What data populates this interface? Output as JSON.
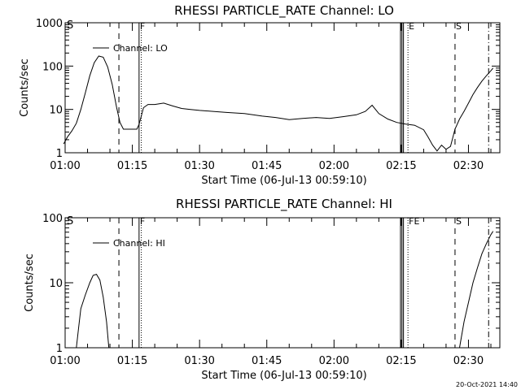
{
  "footer": {
    "timestamp": "20-Oct-2021 14:40"
  },
  "chart_data": [
    {
      "type": "line",
      "title": "RHESSI PARTICLE_RATE Channel: LO",
      "xlabel": "Start Time (06-Jul-13 00:59:10)",
      "ylabel": "Counts/sec",
      "y_scale": "log",
      "ylim": [
        1,
        1000
      ],
      "xlim": [
        "01:00",
        "02:37"
      ],
      "y_ticks": [
        "1",
        "10",
        "100",
        "1000"
      ],
      "x_ticks": [
        "01:00",
        "01:15",
        "01:30",
        "01:45",
        "02:00",
        "02:15",
        "02:30"
      ],
      "legend": {
        "label": "Channel: LO",
        "placement": "top-left"
      },
      "series": [
        {
          "name": "Channel: LO",
          "x": [
            "00:59:40",
            "01:00:30",
            "01:01:30",
            "01:02:30",
            "01:03:30",
            "01:04:30",
            "01:05:30",
            "01:06:30",
            "01:07:30",
            "01:08:30",
            "01:09:30",
            "01:10:30",
            "01:11:30",
            "01:12:15",
            "01:13:00",
            "01:14:00",
            "01:15:00",
            "01:16:00",
            "01:16:30",
            "01:17:30",
            "01:18:30",
            "01:20:00",
            "01:22:00",
            "01:24:00",
            "01:26:00",
            "01:28:00",
            "01:30:00",
            "01:33:00",
            "01:36:00",
            "01:40:00",
            "01:44:00",
            "01:47:00",
            "01:50:00",
            "01:53:00",
            "01:56:00",
            "01:59:00",
            "02:02:00",
            "02:05:00",
            "02:07:00",
            "02:08:30",
            "02:10:00",
            "02:12:00",
            "02:14:00",
            "02:16:00",
            "02:18:00",
            "02:20:00",
            "02:21:00",
            "02:22:00",
            "02:23:00",
            "02:24:00",
            "02:25:00",
            "02:26:00",
            "02:27:00",
            "02:28:00",
            "02:29:00",
            "02:30:00",
            "02:31:00",
            "02:32:00",
            "02:33:00",
            "02:34:00",
            "02:35:00",
            "02:35:30"
          ],
          "values": [
            1.6,
            2.3,
            3.2,
            4.8,
            10,
            24,
            60,
            120,
            170,
            160,
            95,
            38,
            11,
            5,
            3.5,
            3.5,
            3.5,
            3.5,
            4.5,
            11,
            13,
            13,
            14,
            12,
            10.5,
            10,
            9.5,
            9,
            8.5,
            8,
            7,
            6.5,
            5.8,
            6.2,
            6.5,
            6.2,
            6.8,
            7.5,
            9,
            12.5,
            8,
            6,
            5,
            4.6,
            4.3,
            3.4,
            2.3,
            1.5,
            1.1,
            1.5,
            1.2,
            1.4,
            3.5,
            6,
            9,
            14,
            22,
            32,
            45,
            60,
            78,
            90
          ]
        }
      ],
      "markers": [
        {
          "x": "01:12:00",
          "style": "dashed"
        },
        {
          "x": "01:16:30",
          "style": "solid",
          "label": "F"
        },
        {
          "x": "01:17:00",
          "style": "dotted"
        },
        {
          "x": "02:14:50",
          "style": "solid"
        },
        {
          "x": "02:15:10",
          "style": "solid"
        },
        {
          "x": "02:15:30",
          "style": "solid"
        },
        {
          "x": "02:16:30",
          "style": "dotted",
          "label": "E"
        },
        {
          "x": "02:27:00",
          "style": "dashed",
          "label": "S"
        },
        {
          "x": "02:34:30",
          "style": "dashdot"
        }
      ],
      "corner_label": "S"
    },
    {
      "type": "line",
      "title": "RHESSI PARTICLE_RATE Channel: HI",
      "xlabel": "Start Time (06-Jul-13 00:59:10)",
      "ylabel": "Counts/sec",
      "y_scale": "log",
      "ylim": [
        1,
        100
      ],
      "xlim": [
        "01:00",
        "02:37"
      ],
      "y_ticks": [
        "1",
        "10",
        "100"
      ],
      "x_ticks": [
        "01:00",
        "01:15",
        "01:30",
        "01:45",
        "02:00",
        "02:15",
        "02:30"
      ],
      "legend": {
        "label": "Channel: HI",
        "placement": "top-left"
      },
      "series": [
        {
          "name": "Channel: HI",
          "x": [
            "01:02:30",
            "01:03:00",
            "01:03:30",
            "01:04:30",
            "01:05:30",
            "01:06:15",
            "01:07:00",
            "01:07:45",
            "01:08:30",
            "01:09:15",
            "01:09:45"
          ],
          "values": [
            1,
            2,
            4,
            6.5,
            10,
            13,
            13.5,
            11,
            6,
            2.5,
            1
          ]
        },
        {
          "name": "Channel: HI",
          "x": [
            "02:28:00",
            "02:29:00",
            "02:30:00",
            "02:31:00",
            "02:32:00",
            "02:33:00",
            "02:34:00",
            "02:35:00",
            "02:35:30"
          ],
          "values": [
            1,
            2.5,
            5,
            10,
            17,
            28,
            40,
            55,
            62
          ]
        }
      ],
      "markers": [
        {
          "x": "01:12:00",
          "style": "dashed"
        },
        {
          "x": "01:16:30",
          "style": "solid",
          "label": "F"
        },
        {
          "x": "01:17:00",
          "style": "dotted"
        },
        {
          "x": "02:14:50",
          "style": "solid"
        },
        {
          "x": "02:15:10",
          "style": "solid"
        },
        {
          "x": "02:15:30",
          "style": "solid"
        },
        {
          "x": "02:16:30",
          "style": "dotted",
          "label": "FE"
        },
        {
          "x": "02:27:00",
          "style": "dashed",
          "label": "S"
        },
        {
          "x": "02:34:30",
          "style": "dashdot"
        }
      ],
      "corner_label": "S"
    }
  ]
}
